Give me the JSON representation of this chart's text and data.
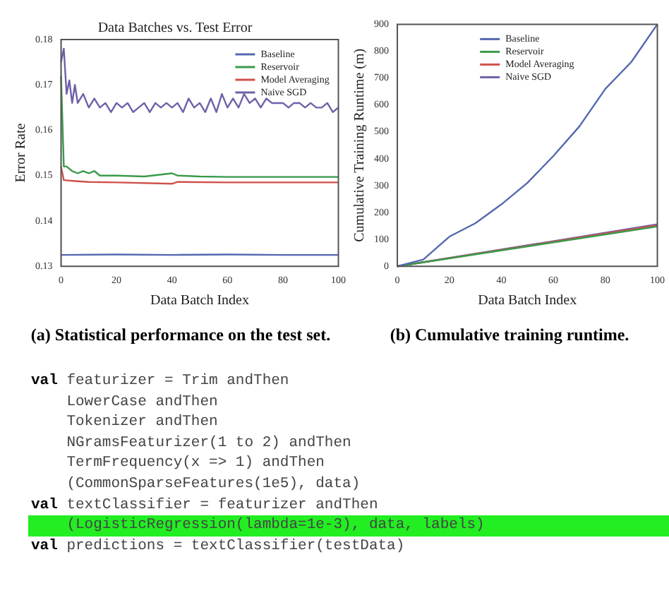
{
  "chart_data": [
    {
      "type": "line",
      "title": "Data Batches vs. Test Error",
      "xlabel": "Data Batch Index",
      "ylabel": "Error Rate",
      "xlim": [
        0,
        100
      ],
      "xticks": [
        0,
        20,
        40,
        60,
        80,
        100
      ],
      "ylim": [
        0.13,
        0.18
      ],
      "yticks": [
        0.13,
        0.14,
        0.15,
        0.16,
        0.17,
        0.18
      ],
      "grid": false,
      "legend": "top right",
      "annotations": [
        "(a)  Statistical performance on the test set."
      ],
      "series": [
        {
          "name": "Baseline",
          "color": "#5468b0",
          "x": [
            0,
            20,
            40,
            60,
            80,
            100
          ],
          "values": [
            0.1325,
            0.1326,
            0.1325,
            0.1326,
            0.1325,
            0.1325
          ]
        },
        {
          "name": "Reservoir",
          "color": "#3a9a4a",
          "x": [
            0,
            1,
            2,
            4,
            6,
            8,
            10,
            12,
            14,
            16,
            20,
            30,
            40,
            42,
            50,
            60,
            70,
            80,
            90,
            100
          ],
          "values": [
            0.172,
            0.152,
            0.152,
            0.151,
            0.1505,
            0.151,
            0.1505,
            0.151,
            0.15,
            0.15,
            0.15,
            0.1498,
            0.1505,
            0.15,
            0.1498,
            0.1497,
            0.1497,
            0.1497,
            0.1497,
            0.1497
          ]
        },
        {
          "name": "Model Averaging",
          "color": "#d0504a",
          "x": [
            0,
            1,
            5,
            10,
            20,
            40,
            42,
            60,
            80,
            100
          ],
          "values": [
            0.152,
            0.149,
            0.1488,
            0.1486,
            0.1485,
            0.1482,
            0.1486,
            0.1485,
            0.1485,
            0.1485
          ]
        },
        {
          "name": "Naive SGD",
          "color": "#7060a8",
          "x": [
            0,
            1,
            2,
            3,
            4,
            5,
            6,
            8,
            10,
            12,
            14,
            16,
            18,
            20,
            22,
            24,
            26,
            28,
            30,
            32,
            34,
            36,
            38,
            40,
            42,
            44,
            46,
            48,
            50,
            52,
            54,
            56,
            58,
            60,
            62,
            64,
            66,
            68,
            70,
            72,
            74,
            76,
            78,
            80,
            82,
            84,
            86,
            88,
            90,
            92,
            94,
            96,
            98,
            100
          ],
          "values": [
            0.175,
            0.178,
            0.168,
            0.171,
            0.166,
            0.17,
            0.166,
            0.168,
            0.165,
            0.167,
            0.165,
            0.166,
            0.164,
            0.166,
            0.165,
            0.166,
            0.164,
            0.165,
            0.166,
            0.164,
            0.166,
            0.165,
            0.166,
            0.165,
            0.166,
            0.164,
            0.167,
            0.165,
            0.166,
            0.164,
            0.167,
            0.164,
            0.168,
            0.165,
            0.167,
            0.165,
            0.168,
            0.166,
            0.167,
            0.165,
            0.167,
            0.166,
            0.166,
            0.166,
            0.165,
            0.166,
            0.166,
            0.165,
            0.166,
            0.165,
            0.165,
            0.166,
            0.164,
            0.165
          ]
        }
      ]
    },
    {
      "type": "line",
      "xlabel": "Data Batch Index",
      "ylabel": "Cumulative Training Runtime (m)",
      "xlim": [
        0,
        100
      ],
      "xticks": [
        0,
        20,
        40,
        60,
        80,
        100
      ],
      "ylim": [
        0,
        900
      ],
      "yticks": [
        0,
        100,
        200,
        300,
        400,
        500,
        600,
        700,
        800,
        900
      ],
      "grid": false,
      "legend": "top",
      "annotations": [
        "(b) Cumulative training runtime."
      ],
      "series": [
        {
          "name": "Baseline",
          "color": "#5468b0",
          "x": [
            0,
            10,
            20,
            30,
            40,
            50,
            60,
            70,
            80,
            90,
            100
          ],
          "values": [
            0,
            25,
            110,
            160,
            230,
            310,
            410,
            520,
            660,
            760,
            900
          ]
        },
        {
          "name": "Reservoir",
          "color": "#3a9a4a",
          "x": [
            0,
            100
          ],
          "values": [
            0,
            148
          ]
        },
        {
          "name": "Model Averaging",
          "color": "#d0504a",
          "x": [
            0,
            100
          ],
          "values": [
            0,
            152
          ]
        },
        {
          "name": "Naive SGD",
          "color": "#7060a8",
          "x": [
            0,
            100
          ],
          "values": [
            0,
            156
          ]
        }
      ]
    },
    {
      "type": "other",
      "annotations": [
        "val featurizer = Trim andThen",
        "    LowerCase andThen",
        "    Tokenizer andThen",
        "    NGramsFeaturizer(1 to 2) andThen",
        "    TermFrequency(x => 1) andThen",
        "    (CommonSparseFeatures(1e5), data)",
        "val textClassifier = featurizer andThen",
        "    (LogisticRegression(lambda=1e-3), data, labels)",
        "val predictions = textClassifier(testData)"
      ]
    }
  ]
}
